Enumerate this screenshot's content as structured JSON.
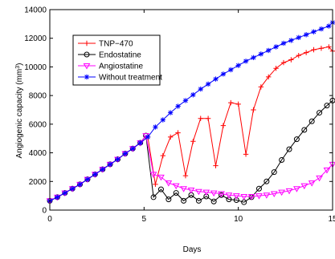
{
  "chart_data": {
    "type": "line",
    "title": "",
    "xlabel": "Days",
    "ylabel": "Angiogenic capacity (mm",
    "ylabel_sup": "3",
    "ylabel_end": ")",
    "xlim": [
      0,
      15
    ],
    "ylim": [
      0,
      14000
    ],
    "xticks": [
      0,
      5,
      10,
      15
    ],
    "yticks": [
      0,
      2000,
      4000,
      6000,
      8000,
      10000,
      12000,
      14000
    ],
    "grid": false,
    "legend_position": "upper-left",
    "series": [
      {
        "name": "TNP−470",
        "color": "#ff0000",
        "marker": "plus",
        "x": [
          0,
          0.4,
          0.8,
          1.2,
          1.6,
          2.0,
          2.4,
          2.8,
          3.2,
          3.6,
          4.0,
          4.4,
          4.8,
          5.2,
          5.6,
          6.0,
          6.4,
          6.8,
          7.2,
          7.6,
          8.0,
          8.4,
          8.8,
          9.2,
          9.6,
          10.0,
          10.4,
          10.8,
          11.2,
          11.6,
          12.0,
          12.4,
          12.8,
          13.2,
          13.6,
          14.0,
          14.4,
          14.8,
          15.0
        ],
        "y": [
          650,
          900,
          1200,
          1500,
          1800,
          2150,
          2500,
          2850,
          3200,
          3550,
          3950,
          4300,
          4700,
          5100,
          1800,
          3800,
          5100,
          5400,
          2400,
          4800,
          6400,
          6400,
          3100,
          5900,
          7500,
          7400,
          3900,
          7000,
          8600,
          9300,
          9900,
          10300,
          10500,
          10800,
          11000,
          11200,
          11300,
          11400,
          11100
        ]
      },
      {
        "name": "Endostatine",
        "color": "#000000",
        "marker": "circle",
        "x": [
          0,
          0.4,
          0.8,
          1.2,
          1.6,
          2.0,
          2.4,
          2.8,
          3.2,
          3.6,
          4.0,
          4.4,
          4.8,
          5.1,
          5.5,
          5.9,
          6.3,
          6.7,
          7.1,
          7.5,
          7.9,
          8.3,
          8.7,
          9.1,
          9.5,
          9.9,
          10.3,
          10.7,
          11.1,
          11.5,
          11.9,
          12.3,
          12.7,
          13.1,
          13.5,
          13.9,
          14.3,
          14.7,
          15.0
        ],
        "y": [
          650,
          900,
          1200,
          1500,
          1800,
          2150,
          2500,
          2850,
          3200,
          3550,
          3950,
          4300,
          4700,
          5200,
          900,
          1450,
          750,
          1200,
          650,
          1050,
          650,
          950,
          600,
          1050,
          750,
          700,
          550,
          900,
          1500,
          2000,
          2650,
          3500,
          4250,
          4950,
          5600,
          6200,
          6800,
          7300,
          7650
        ]
      },
      {
        "name": "Angiostatine",
        "color": "#ff00ff",
        "marker": "triangle-down",
        "x": [
          0,
          0.4,
          0.8,
          1.2,
          1.6,
          2.0,
          2.4,
          2.8,
          3.2,
          3.6,
          4.0,
          4.4,
          4.8,
          5.1,
          5.5,
          5.9,
          6.3,
          6.7,
          7.1,
          7.5,
          7.9,
          8.3,
          8.7,
          9.1,
          9.5,
          9.9,
          10.3,
          10.7,
          11.1,
          11.5,
          11.9,
          12.3,
          12.7,
          13.1,
          13.5,
          13.9,
          14.3,
          14.7,
          15.0
        ],
        "y": [
          650,
          900,
          1200,
          1500,
          1800,
          2150,
          2500,
          2850,
          3200,
          3550,
          3950,
          4300,
          4700,
          5200,
          2500,
          2300,
          1900,
          1700,
          1500,
          1400,
          1300,
          1250,
          1200,
          1150,
          1050,
          1000,
          950,
          950,
          1000,
          1050,
          1150,
          1250,
          1350,
          1500,
          1700,
          1900,
          2250,
          2800,
          3200
        ]
      },
      {
        "name": "Without treatment",
        "color": "#0000ff",
        "marker": "asterisk",
        "x": [
          0,
          0.4,
          0.8,
          1.2,
          1.6,
          2.0,
          2.4,
          2.8,
          3.2,
          3.6,
          4.0,
          4.4,
          4.8,
          5.2,
          5.6,
          6.0,
          6.4,
          6.8,
          7.2,
          7.6,
          8.0,
          8.4,
          8.8,
          9.2,
          9.6,
          10.0,
          10.4,
          10.8,
          11.2,
          11.6,
          12.0,
          12.4,
          12.8,
          13.2,
          13.6,
          14.0,
          14.4,
          14.8,
          15.0
        ],
        "y": [
          650,
          900,
          1200,
          1500,
          1800,
          2150,
          2500,
          2850,
          3200,
          3550,
          3950,
          4300,
          4700,
          5100,
          5800,
          6300,
          6800,
          7250,
          7650,
          8050,
          8450,
          8800,
          9150,
          9500,
          9800,
          10100,
          10400,
          10650,
          10900,
          11150,
          11400,
          11650,
          11850,
          12050,
          12250,
          12450,
          12650,
          12850,
          13100
        ]
      }
    ]
  }
}
